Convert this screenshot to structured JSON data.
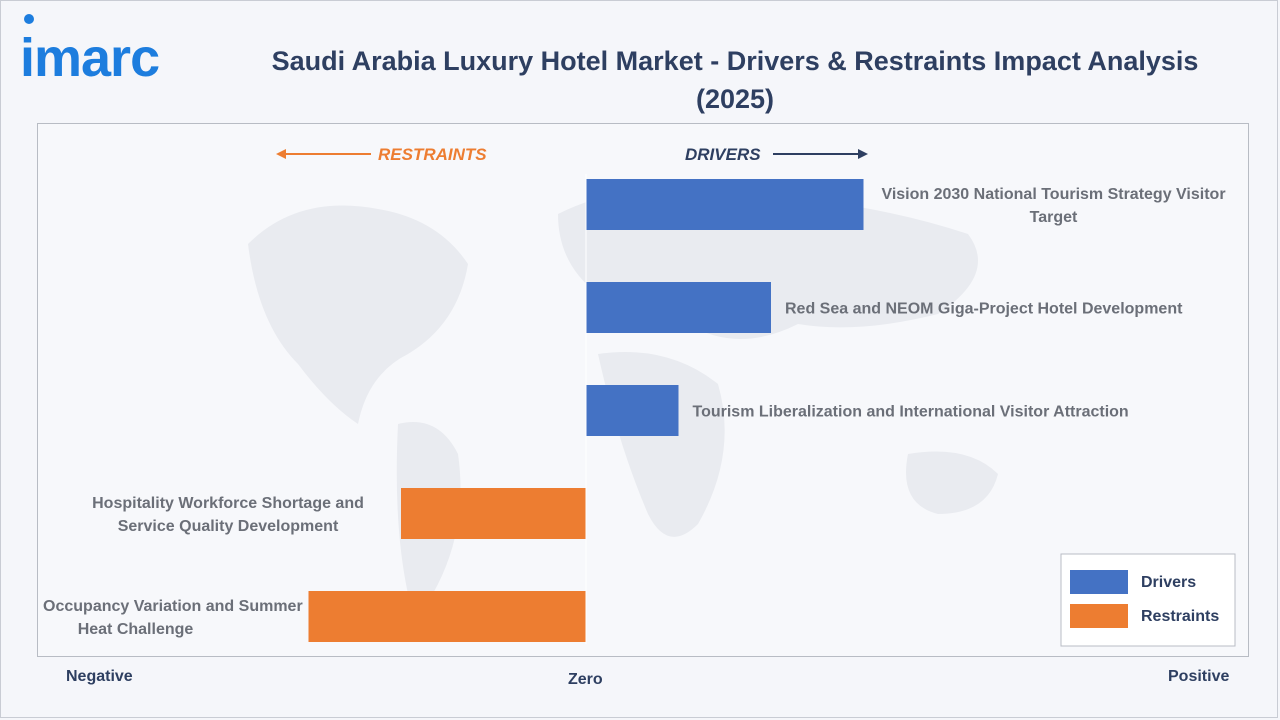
{
  "brand": {
    "logo_text": "imarc",
    "color": "#1d7dde"
  },
  "chart_data": {
    "type": "bar",
    "orientation": "horizontal",
    "title": "Saudi Arabia Luxury Hotel Market - Drivers & Restraints Impact Analysis (2025)",
    "categories": [
      "Vision 2030 National Tourism Strategy Visitor Target",
      "Red Sea and NEOM Giga-Project Hotel Development",
      "Tourism Liberalization and International Visitor Attraction",
      "Hospitality Workforce Shortage and Service Quality Development",
      "Seasonal Occupancy Variation and Summer Heat Challenge"
    ],
    "values": [
      3,
      2,
      1,
      -2,
      -3
    ],
    "xlim": [
      -6,
      6
    ],
    "series": [
      {
        "name": "Drivers",
        "color": "#4472c4"
      },
      {
        "name": "Restraints",
        "color": "#ed7d31"
      }
    ],
    "direction_labels": {
      "left": "RESTRAINTS",
      "right": "DRIVERS"
    },
    "axis_labels": {
      "left": "Negative",
      "center": "Zero",
      "right": "Positive"
    },
    "legend": {
      "placement": "bottom-right",
      "items": [
        "Drivers",
        "Restraints"
      ]
    },
    "grid": false
  }
}
